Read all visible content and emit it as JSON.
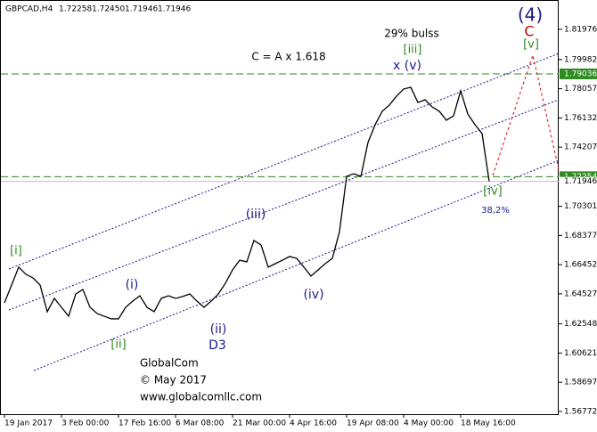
{
  "chart_data": {
    "type": "line",
    "header": {
      "symbol": "GBPCAD,H4",
      "ohlc": [
        "1.72258",
        "1.72450",
        "1.71946",
        "1.71946"
      ]
    },
    "categories": [
      "19 Jan 2017",
      null,
      null,
      null,
      null,
      null,
      null,
      null,
      "3 Feb 00:00",
      null,
      null,
      null,
      null,
      null,
      null,
      null,
      "17 Feb 16:00",
      null,
      null,
      null,
      null,
      null,
      null,
      null,
      "6 Mar 08:00",
      null,
      null,
      null,
      null,
      null,
      null,
      null,
      "21 Mar 00:00",
      null,
      null,
      null,
      null,
      null,
      null,
      null,
      "4 Apr 16:00",
      null,
      null,
      null,
      null,
      null,
      null,
      null,
      "19 Apr 08:00",
      null,
      null,
      null,
      null,
      null,
      null,
      null,
      "4 May 00:00",
      null,
      null,
      null,
      null,
      null,
      null,
      null,
      "18 May 16:00",
      null,
      null,
      null,
      null
    ],
    "series": [
      {
        "color": "#000000",
        "values": [
          1.6393,
          1.6511,
          1.6629,
          1.6582,
          1.6558,
          1.6511,
          1.6335,
          1.6423,
          1.6364,
          1.6305,
          1.6452,
          1.6482,
          1.6364,
          1.6323,
          1.6305,
          1.6288,
          1.6288,
          1.6364,
          1.6405,
          1.644,
          1.6364,
          1.6335,
          1.6423,
          1.644,
          1.6423,
          1.6435,
          1.6452,
          1.6405,
          1.6364,
          1.6405,
          1.6452,
          1.6523,
          1.6611,
          1.6675,
          1.6664,
          1.6805,
          1.6775,
          1.6629,
          1.6652,
          1.6675,
          1.6699,
          1.6687,
          1.6629,
          1.657,
          1.6611,
          1.6652,
          1.6687,
          1.6863,
          1.7228,
          1.7245,
          1.7228,
          1.7451,
          1.7569,
          1.7657,
          1.7698,
          1.7757,
          1.7804,
          1.7815,
          1.7715,
          1.7733,
          1.7686,
          1.7657,
          1.7598,
          1.7627,
          1.7792,
          1.7639,
          1.7569,
          1.751,
          1.71946
        ]
      }
    ],
    "ylim": [
      1.5659,
      1.8391
    ],
    "yticks": [
      1.81976,
      1.79982,
      1.78057,
      1.76132,
      1.74207,
      1.70301,
      1.68377,
      1.66452,
      1.64527,
      1.62548,
      1.60621,
      1.58697,
      1.56772
    ],
    "levels": [
      1.79036,
      1.72254
    ],
    "last_price": 1.71946,
    "annotations": [
      "[i]",
      "(i)",
      "[ii]",
      "(ii)",
      "D3",
      "(iii)",
      "(iv)",
      "[iii]",
      "x (v)",
      "29% bulss",
      "C = A x 1.618",
      "(4)",
      "C",
      "[v]",
      "[iv]",
      "38,2%",
      "GlobalCom",
      "© May 2017",
      "www.globalcomllc.com"
    ]
  }
}
